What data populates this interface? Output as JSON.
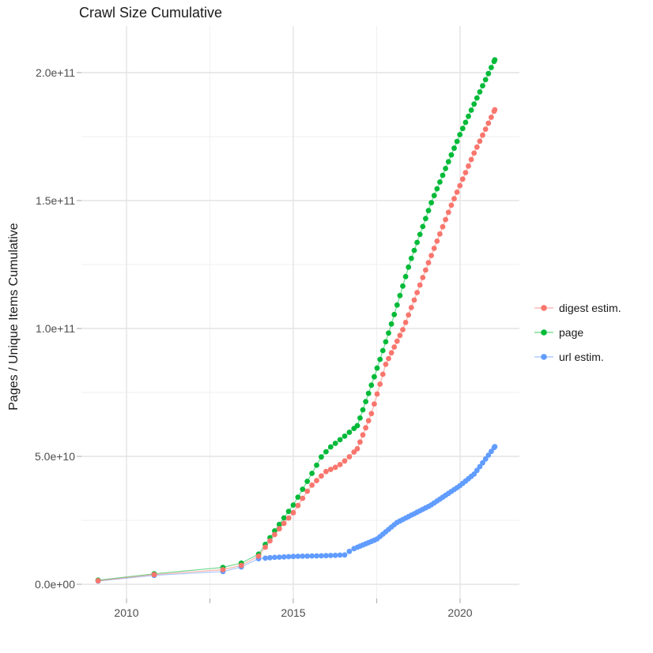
{
  "title": "Crawl Size Cumulative",
  "y_axis": {
    "title": "Pages / Unique Items Cumulative"
  },
  "legend": {
    "position": "right"
  },
  "chart_data": {
    "type": "scatter",
    "title": "Crawl Size Cumulative",
    "xlabel": "",
    "ylabel": "Pages / Unique Items Cumulative",
    "xlim": [
      2008.6,
      2021.75
    ],
    "ylim_e9": [
      -5,
      218
    ],
    "grid": true,
    "x_ticks": [
      {
        "year": 2010,
        "label": "2010"
      },
      {
        "year": 2015,
        "label": "2015"
      },
      {
        "year": 2020,
        "label": "2020"
      }
    ],
    "x_minor_years": [
      2012.5,
      2017.5
    ],
    "x_tick_marks": [
      2010,
      2012.5,
      2015,
      2017.5,
      2020
    ],
    "y_ticks": [
      {
        "value_e9": 0,
        "label": "0.0e+00"
      },
      {
        "value_e9": 50,
        "label": "5.0e+10"
      },
      {
        "value_e9": 100,
        "label": "1.0e+11"
      },
      {
        "value_e9": 150,
        "label": "1.5e+11"
      },
      {
        "value_e9": 200,
        "label": "2.0e+11"
      }
    ],
    "y_minor_e9": [
      25,
      75,
      125,
      175
    ],
    "sampling": {
      "early_points": [
        2009.15,
        2010.83,
        2012.89,
        2013.44,
        2013.96
      ],
      "ranges": [
        {
          "from": 2014.16,
          "to": 2016.92,
          "step": 0.14
        },
        {
          "from": 2017.0,
          "to": 2021.04,
          "step": 0.0855
        }
      ]
    },
    "series": [
      {
        "name": "url estim.",
        "color": "#619CFF",
        "anchors_year_value_e9": [
          [
            2009.15,
            1.3
          ],
          [
            2010.83,
            3.5
          ],
          [
            2012.89,
            5.0
          ],
          [
            2013.44,
            6.8
          ],
          [
            2013.96,
            10.0
          ],
          [
            2014.4,
            10.5
          ],
          [
            2015.0,
            10.9
          ],
          [
            2016.0,
            11.2
          ],
          [
            2016.58,
            11.5
          ],
          [
            2016.72,
            13.4
          ],
          [
            2017.5,
            17.6
          ],
          [
            2018.1,
            24.1
          ],
          [
            2019.12,
            30.9
          ],
          [
            2020.0,
            38.6
          ],
          [
            2020.43,
            43.2
          ],
          [
            2021.04,
            53.8
          ]
        ]
      },
      {
        "name": "page",
        "color": "#00BA38",
        "anchors_year_value_e9": [
          [
            2009.15,
            1.6
          ],
          [
            2010.83,
            4.1
          ],
          [
            2012.89,
            6.6
          ],
          [
            2013.44,
            8.3
          ],
          [
            2013.96,
            11.8
          ],
          [
            2014.5,
            22
          ],
          [
            2015.0,
            31
          ],
          [
            2015.5,
            42
          ],
          [
            2015.85,
            50
          ],
          [
            2016.1,
            53.5
          ],
          [
            2016.55,
            58
          ],
          [
            2016.92,
            62
          ],
          [
            2017.4,
            80
          ],
          [
            2017.9,
            100
          ],
          [
            2018.5,
            126
          ],
          [
            2019.16,
            150
          ],
          [
            2020.0,
            176
          ],
          [
            2021.04,
            205
          ]
        ]
      },
      {
        "name": "digest estim.",
        "color": "#F8766D",
        "anchors_year_value_e9": [
          [
            2009.15,
            1.4
          ],
          [
            2010.83,
            3.8
          ],
          [
            2012.89,
            5.7
          ],
          [
            2013.44,
            7.4
          ],
          [
            2013.96,
            11.0
          ],
          [
            2014.5,
            20.5
          ],
          [
            2015.0,
            28
          ],
          [
            2015.5,
            38
          ],
          [
            2015.97,
            44
          ],
          [
            2016.35,
            46.3
          ],
          [
            2016.6,
            48.8
          ],
          [
            2016.92,
            53
          ],
          [
            2017.35,
            67
          ],
          [
            2017.77,
            86
          ],
          [
            2018.3,
            100
          ],
          [
            2019.0,
            124
          ],
          [
            2019.73,
            148
          ],
          [
            2020.4,
            168
          ],
          [
            2021.04,
            185.5
          ]
        ]
      }
    ],
    "legend_items": [
      {
        "label": "digest estim.",
        "color": "#F8766D"
      },
      {
        "label": "page",
        "color": "#00BA38"
      },
      {
        "label": "url estim.",
        "color": "#619CFF"
      }
    ],
    "style": {
      "grid_major_color": "#e4e4e4",
      "grid_minor_color": "#efefef",
      "tick_mark_color": "#b3b3b3",
      "dot_radius": 3.4,
      "line_opacity": 0.55
    }
  }
}
